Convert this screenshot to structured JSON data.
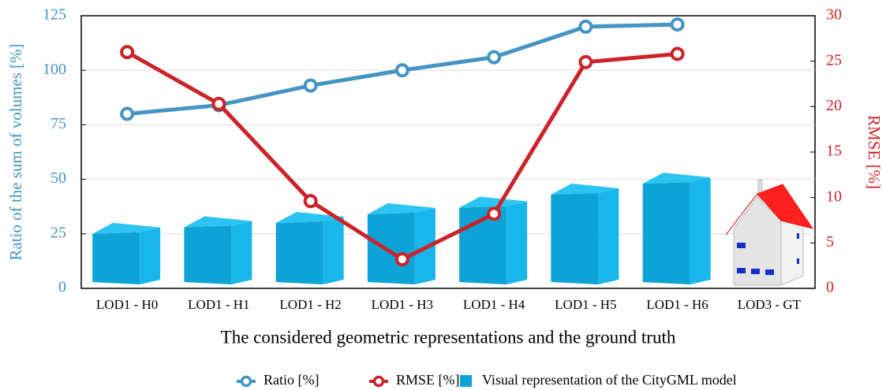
{
  "chart_data": {
    "type": "line",
    "xlabel": "The considered geometric representations and the ground truth",
    "ylabel": "Ratio of the sum of volumes [%]",
    "y2label": "RMSE [%]",
    "categories": [
      "LOD1 - H0",
      "LOD1 - H1",
      "LOD1 - H2",
      "LOD1 - H3",
      "LOD1 - H4",
      "LOD1 - H5",
      "LOD1 - H6",
      "LOD3 - GT"
    ],
    "ylim": [
      0,
      125
    ],
    "yticks": [
      0,
      25,
      50,
      75,
      100,
      125
    ],
    "y2lim": [
      0,
      30
    ],
    "y2ticks": [
      0,
      5,
      10,
      15,
      20,
      25,
      30
    ],
    "grid": true,
    "legend": "bottom",
    "series": [
      {
        "name": "Ratio [%]",
        "type": "line",
        "color": "#4494c4",
        "values": [
          80,
          84,
          93,
          100,
          106,
          120,
          121,
          null
        ]
      },
      {
        "name": "RMSE [%]",
        "type": "line",
        "color": "#cc2229",
        "axis": "y2",
        "values": [
          26,
          20.3,
          9.6,
          3.2,
          8.2,
          24.9,
          25.8,
          null
        ]
      },
      {
        "name": "Visual representation of the CityGML model",
        "type": "bar",
        "color": "#0ea3d6",
        "values": [
          25,
          28,
          30,
          34,
          37,
          43,
          48,
          null
        ]
      }
    ]
  }
}
